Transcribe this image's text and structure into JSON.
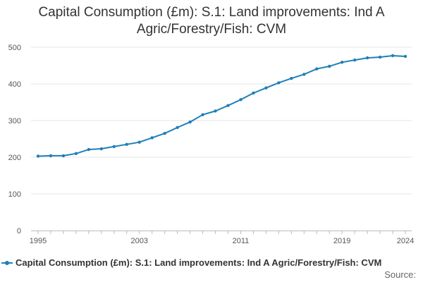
{
  "chart_data": {
    "type": "line",
    "title_line1": "Capital Consumption (£m): S.1: Land improvements: Ind A",
    "title_line2": "Agric/Forestry/Fish: CVM",
    "x": [
      1995,
      1996,
      1997,
      1998,
      1999,
      2000,
      2001,
      2002,
      2003,
      2004,
      2005,
      2006,
      2007,
      2008,
      2009,
      2010,
      2011,
      2012,
      2013,
      2014,
      2015,
      2016,
      2017,
      2018,
      2019,
      2020,
      2021,
      2022,
      2023,
      2024
    ],
    "x_tick_labels": [
      "1995",
      "2003",
      "2011",
      "2019",
      "2024"
    ],
    "x_tick_values": [
      1995,
      2003,
      2011,
      2019,
      2024
    ],
    "series": [
      {
        "name": "Capital Consumption (£m): S.1: Land improvements: Ind A Agric/Forestry/Fish: CVM",
        "color": "#1f7fb8",
        "values": [
          203,
          204,
          204,
          210,
          221,
          223,
          229,
          235,
          241,
          253,
          265,
          281,
          296,
          316,
          326,
          341,
          357,
          375,
          389,
          403,
          415,
          426,
          441,
          448,
          459,
          465,
          471,
          473,
          477,
          475
        ]
      }
    ],
    "ylim": [
      0,
      500
    ],
    "y_ticks": [
      0,
      100,
      200,
      300,
      400,
      500
    ],
    "grid": true,
    "legend_position": "bottom",
    "source_label": "Source:"
  }
}
